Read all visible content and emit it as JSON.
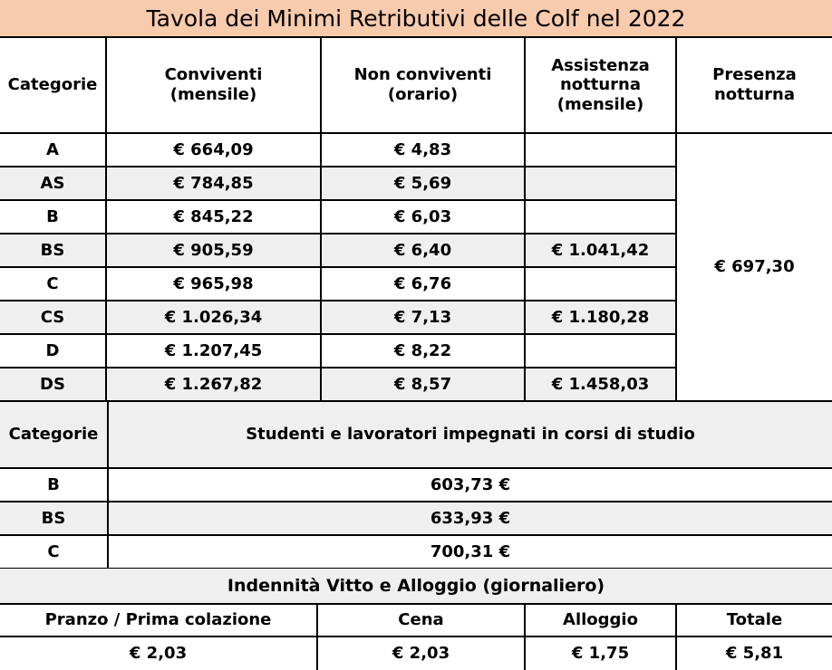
{
  "title": "Tavola dei Minimi Retributivi delle Colf nel 2022",
  "header": {
    "categorie": "Categorie",
    "conviventi": "Conviventi (mensile)",
    "non_conviventi": "Non conviventi (orario)",
    "assistenza": "Assistenza notturna (mensile)",
    "presenza": "Presenza notturna"
  },
  "rows": [
    {
      "cat": "A",
      "conv": "€ 664,09",
      "nonconv": "€ 4,83",
      "assist": ""
    },
    {
      "cat": "AS",
      "conv": "€ 784,85",
      "nonconv": "€ 5,69",
      "assist": ""
    },
    {
      "cat": "B",
      "conv": "€ 845,22",
      "nonconv": "€ 6,03",
      "assist": ""
    },
    {
      "cat": "BS",
      "conv": "€ 905,59",
      "nonconv": "€ 6,40",
      "assist": "€ 1.041,42"
    },
    {
      "cat": "C",
      "conv": "€ 965,98",
      "nonconv": "€ 6,76",
      "assist": ""
    },
    {
      "cat": "CS",
      "conv": "€ 1.026,34",
      "nonconv": "€ 7,13",
      "assist": "€ 1.180,28"
    },
    {
      "cat": "D",
      "conv": "€ 1.207,45",
      "nonconv": "€ 8,22",
      "assist": ""
    },
    {
      "cat": "DS",
      "conv": "€ 1.267,82",
      "nonconv": "€ 8,57",
      "assist": "€ 1.458,03"
    }
  ],
  "presenza_value": "€ 697,30",
  "students": {
    "categorie": "Categorie",
    "heading": "Studenti e lavoratori impegnati in corsi di studio",
    "rows": [
      {
        "cat": "B",
        "value": "603,73 €"
      },
      {
        "cat": "BS",
        "value": "633,93 €"
      },
      {
        "cat": "C",
        "value": "700,31 €"
      }
    ]
  },
  "indennita": {
    "heading": "Indennità Vitto e Alloggio (giornaliero)",
    "columns": [
      "Pranzo / Prima colazione",
      "Cena",
      "Alloggio",
      "Totale"
    ],
    "values": [
      "€ 2,03",
      "€ 2,03",
      "€ 1,75",
      "€ 5,81"
    ]
  }
}
